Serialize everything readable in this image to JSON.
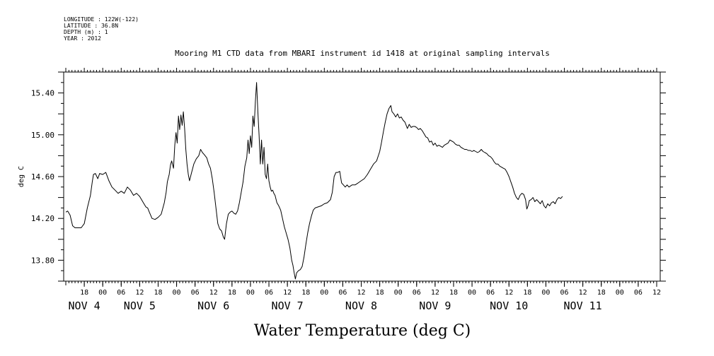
{
  "header": {
    "meta_lines": [
      "LONGITUDE : 122W(-122)",
      "LATITUDE : 36.8N",
      "DEPTH (m) : 1",
      "YEAR : 2012"
    ],
    "title": "Mooring M1 CTD data from MBARI instrument id 1418 at original sampling intervals"
  },
  "chart_data": {
    "type": "line",
    "title": "Mooring M1 CTD data from MBARI instrument id 1418 at original sampling intervals",
    "xlabel": "Water Temperature (deg C)",
    "ylabel": "deg C",
    "x_unit": "hours from Nov 3 12:00 2012",
    "xlim": [
      0,
      192
    ],
    "ylim": [
      13.6,
      15.6
    ],
    "yticks": [
      "13.80",
      "14.20",
      "14.60",
      "15.00",
      "15.40"
    ],
    "ytick_values": [
      13.8,
      14.2,
      14.6,
      15.0,
      15.4
    ],
    "xticks": [
      {
        "h": 6,
        "label": "18"
      },
      {
        "h": 12,
        "label": "00"
      },
      {
        "h": 18,
        "label": "06"
      },
      {
        "h": 24,
        "label": "12"
      },
      {
        "h": 30,
        "label": "18"
      },
      {
        "h": 36,
        "label": "00"
      },
      {
        "h": 42,
        "label": "06"
      },
      {
        "h": 48,
        "label": "12"
      },
      {
        "h": 54,
        "label": "18"
      },
      {
        "h": 60,
        "label": "00"
      },
      {
        "h": 66,
        "label": "06"
      },
      {
        "h": 72,
        "label": "12"
      },
      {
        "h": 78,
        "label": "18"
      },
      {
        "h": 84,
        "label": "00"
      },
      {
        "h": 90,
        "label": "06"
      },
      {
        "h": 96,
        "label": "12"
      },
      {
        "h": 102,
        "label": "18"
      },
      {
        "h": 108,
        "label": "00"
      },
      {
        "h": 114,
        "label": "06"
      },
      {
        "h": 120,
        "label": "12"
      },
      {
        "h": 126,
        "label": "18"
      },
      {
        "h": 132,
        "label": "00"
      },
      {
        "h": 138,
        "label": "06"
      },
      {
        "h": 144,
        "label": "12"
      },
      {
        "h": 150,
        "label": "18"
      },
      {
        "h": 156,
        "label": "00"
      },
      {
        "h": 162,
        "label": "06"
      },
      {
        "h": 168,
        "label": "12"
      },
      {
        "h": 174,
        "label": "18"
      },
      {
        "h": 180,
        "label": "00"
      },
      {
        "h": 186,
        "label": "06"
      },
      {
        "h": 192,
        "label": "12"
      }
    ],
    "day_labels": [
      {
        "h": 6,
        "label": "NOV  4"
      },
      {
        "h": 24,
        "label": "NOV  5"
      },
      {
        "h": 48,
        "label": "NOV  6"
      },
      {
        "h": 72,
        "label": "NOV  7"
      },
      {
        "h": 96,
        "label": "NOV  8"
      },
      {
        "h": 120,
        "label": "NOV  9"
      },
      {
        "h": 144,
        "label": "NOV 10"
      },
      {
        "h": 168,
        "label": "NOV 11"
      }
    ],
    "series": [
      {
        "points": [
          [
            0.0,
            14.26
          ],
          [
            0.6,
            14.27
          ],
          [
            1.4,
            14.23
          ],
          [
            2.2,
            14.13
          ],
          [
            3.0,
            14.11
          ],
          [
            4.0,
            14.11
          ],
          [
            5.0,
            14.11
          ],
          [
            6.0,
            14.15
          ],
          [
            7.0,
            14.3
          ],
          [
            8.0,
            14.42
          ],
          [
            8.6,
            14.55
          ],
          [
            9.0,
            14.62
          ],
          [
            9.6,
            14.63
          ],
          [
            10.4,
            14.58
          ],
          [
            11.0,
            14.63
          ],
          [
            12.0,
            14.62
          ],
          [
            13.0,
            14.64
          ],
          [
            14.0,
            14.56
          ],
          [
            15.0,
            14.5
          ],
          [
            16.0,
            14.47
          ],
          [
            17.0,
            14.44
          ],
          [
            18.0,
            14.46
          ],
          [
            19.0,
            14.44
          ],
          [
            20.0,
            14.5
          ],
          [
            21.0,
            14.47
          ],
          [
            22.0,
            14.42
          ],
          [
            23.0,
            14.44
          ],
          [
            24.0,
            14.41
          ],
          [
            25.0,
            14.36
          ],
          [
            26.0,
            14.31
          ],
          [
            26.6,
            14.3
          ],
          [
            27.0,
            14.27
          ],
          [
            28.0,
            14.2
          ],
          [
            29.0,
            14.19
          ],
          [
            30.0,
            14.21
          ],
          [
            31.0,
            14.24
          ],
          [
            32.0,
            14.35
          ],
          [
            32.6,
            14.45
          ],
          [
            33.0,
            14.55
          ],
          [
            33.6,
            14.62
          ],
          [
            34.0,
            14.71
          ],
          [
            34.4,
            14.75
          ],
          [
            35.0,
            14.68
          ],
          [
            35.4,
            14.9
          ],
          [
            35.8,
            15.02
          ],
          [
            36.2,
            14.92
          ],
          [
            36.6,
            15.18
          ],
          [
            37.0,
            15.05
          ],
          [
            37.4,
            15.19
          ],
          [
            37.8,
            15.09
          ],
          [
            38.2,
            15.22
          ],
          [
            38.6,
            15.06
          ],
          [
            39.0,
            14.86
          ],
          [
            39.4,
            14.72
          ],
          [
            39.8,
            14.62
          ],
          [
            40.2,
            14.56
          ],
          [
            40.8,
            14.63
          ],
          [
            41.6,
            14.72
          ],
          [
            42.4,
            14.77
          ],
          [
            43.2,
            14.8
          ],
          [
            43.8,
            14.86
          ],
          [
            44.4,
            14.83
          ],
          [
            45.0,
            14.81
          ],
          [
            45.8,
            14.78
          ],
          [
            46.4,
            14.72
          ],
          [
            47.0,
            14.68
          ],
          [
            47.6,
            14.58
          ],
          [
            48.2,
            14.45
          ],
          [
            48.8,
            14.3
          ],
          [
            49.4,
            14.15
          ],
          [
            50.0,
            14.1
          ],
          [
            50.6,
            14.08
          ],
          [
            51.2,
            14.02
          ],
          [
            51.6,
            14.0
          ],
          [
            52.2,
            14.15
          ],
          [
            52.8,
            14.24
          ],
          [
            53.4,
            14.26
          ],
          [
            54.0,
            14.27
          ],
          [
            54.6,
            14.25
          ],
          [
            55.2,
            14.24
          ],
          [
            55.8,
            14.27
          ],
          [
            56.4,
            14.35
          ],
          [
            57.0,
            14.45
          ],
          [
            57.6,
            14.55
          ],
          [
            58.2,
            14.7
          ],
          [
            58.8,
            14.78
          ],
          [
            59.2,
            14.95
          ],
          [
            59.6,
            14.82
          ],
          [
            60.0,
            14.99
          ],
          [
            60.4,
            14.88
          ],
          [
            60.8,
            15.18
          ],
          [
            61.2,
            15.08
          ],
          [
            61.6,
            15.32
          ],
          [
            62.0,
            15.5
          ],
          [
            62.4,
            15.22
          ],
          [
            62.8,
            15.0
          ],
          [
            63.2,
            14.72
          ],
          [
            63.6,
            14.95
          ],
          [
            64.0,
            14.72
          ],
          [
            64.4,
            14.88
          ],
          [
            64.8,
            14.62
          ],
          [
            65.2,
            14.58
          ],
          [
            65.6,
            14.72
          ],
          [
            66.0,
            14.56
          ],
          [
            66.4,
            14.5
          ],
          [
            66.8,
            14.46
          ],
          [
            67.2,
            14.47
          ],
          [
            67.6,
            14.44
          ],
          [
            68.0,
            14.42
          ],
          [
            68.6,
            14.35
          ],
          [
            69.2,
            14.32
          ],
          [
            69.8,
            14.28
          ],
          [
            70.4,
            14.2
          ],
          [
            71.0,
            14.12
          ],
          [
            71.6,
            14.06
          ],
          [
            72.2,
            14.0
          ],
          [
            72.8,
            13.92
          ],
          [
            73.4,
            13.8
          ],
          [
            73.8,
            13.75
          ],
          [
            74.2,
            13.68
          ],
          [
            74.6,
            13.62
          ],
          [
            75.0,
            13.68
          ],
          [
            75.6,
            13.7
          ],
          [
            76.2,
            13.71
          ],
          [
            76.8,
            13.74
          ],
          [
            77.4,
            13.83
          ],
          [
            78.0,
            13.95
          ],
          [
            78.6,
            14.06
          ],
          [
            79.2,
            14.15
          ],
          [
            79.8,
            14.22
          ],
          [
            80.4,
            14.28
          ],
          [
            81.0,
            14.3
          ],
          [
            82.0,
            14.31
          ],
          [
            83.0,
            14.32
          ],
          [
            84.0,
            14.34
          ],
          [
            85.0,
            14.35
          ],
          [
            86.0,
            14.38
          ],
          [
            86.6,
            14.45
          ],
          [
            87.2,
            14.6
          ],
          [
            87.8,
            14.64
          ],
          [
            88.4,
            14.64
          ],
          [
            89.0,
            14.65
          ],
          [
            89.6,
            14.54
          ],
          [
            90.2,
            14.52
          ],
          [
            90.8,
            14.5
          ],
          [
            91.4,
            14.52
          ],
          [
            92.0,
            14.5
          ],
          [
            93.0,
            14.52
          ],
          [
            94.0,
            14.52
          ],
          [
            95.0,
            14.54
          ],
          [
            96.0,
            14.56
          ],
          [
            97.0,
            14.58
          ],
          [
            98.0,
            14.62
          ],
          [
            99.0,
            14.67
          ],
          [
            100.0,
            14.72
          ],
          [
            101.0,
            14.75
          ],
          [
            102.0,
            14.84
          ],
          [
            102.6,
            14.93
          ],
          [
            103.2,
            15.03
          ],
          [
            103.8,
            15.12
          ],
          [
            104.4,
            15.2
          ],
          [
            105.0,
            15.25
          ],
          [
            105.6,
            15.28
          ],
          [
            106.0,
            15.22
          ],
          [
            106.6,
            15.2
          ],
          [
            107.2,
            15.17
          ],
          [
            107.8,
            15.2
          ],
          [
            108.4,
            15.16
          ],
          [
            109.0,
            15.17
          ],
          [
            109.6,
            15.14
          ],
          [
            110.2,
            15.12
          ],
          [
            111.0,
            15.06
          ],
          [
            111.6,
            15.1
          ],
          [
            112.2,
            15.07
          ],
          [
            112.8,
            15.08
          ],
          [
            113.4,
            15.08
          ],
          [
            114.0,
            15.07
          ],
          [
            114.6,
            15.05
          ],
          [
            115.2,
            15.06
          ],
          [
            115.8,
            15.04
          ],
          [
            116.4,
            15.01
          ],
          [
            117.0,
            14.98
          ],
          [
            117.6,
            14.97
          ],
          [
            118.2,
            14.93
          ],
          [
            118.8,
            14.94
          ],
          [
            119.4,
            14.9
          ],
          [
            120.0,
            14.92
          ],
          [
            120.6,
            14.89
          ],
          [
            121.2,
            14.9
          ],
          [
            121.8,
            14.89
          ],
          [
            122.4,
            14.88
          ],
          [
            123.0,
            14.9
          ],
          [
            123.6,
            14.91
          ],
          [
            124.2,
            14.92
          ],
          [
            124.8,
            14.95
          ],
          [
            125.4,
            14.94
          ],
          [
            126.0,
            14.93
          ],
          [
            126.6,
            14.91
          ],
          [
            127.2,
            14.9
          ],
          [
            127.8,
            14.9
          ],
          [
            128.4,
            14.88
          ],
          [
            129.0,
            14.87
          ],
          [
            129.6,
            14.86
          ],
          [
            130.2,
            14.86
          ],
          [
            130.8,
            14.85
          ],
          [
            131.4,
            14.85
          ],
          [
            132.0,
            14.84
          ],
          [
            132.6,
            14.85
          ],
          [
            133.2,
            14.84
          ],
          [
            133.8,
            14.83
          ],
          [
            134.4,
            14.84
          ],
          [
            135.0,
            14.86
          ],
          [
            135.6,
            14.84
          ],
          [
            136.2,
            14.83
          ],
          [
            136.8,
            14.82
          ],
          [
            137.4,
            14.8
          ],
          [
            138.0,
            14.79
          ],
          [
            138.6,
            14.77
          ],
          [
            139.2,
            14.74
          ],
          [
            139.8,
            14.72
          ],
          [
            140.4,
            14.72
          ],
          [
            141.0,
            14.7
          ],
          [
            141.6,
            14.69
          ],
          [
            142.2,
            14.68
          ],
          [
            142.8,
            14.67
          ],
          [
            143.4,
            14.64
          ],
          [
            144.0,
            14.6
          ],
          [
            144.6,
            14.55
          ],
          [
            145.2,
            14.5
          ],
          [
            145.8,
            14.44
          ],
          [
            146.4,
            14.4
          ],
          [
            147.0,
            14.38
          ],
          [
            147.6,
            14.42
          ],
          [
            148.2,
            14.44
          ],
          [
            148.8,
            14.43
          ],
          [
            149.4,
            14.38
          ],
          [
            149.8,
            14.29
          ],
          [
            150.2,
            14.32
          ],
          [
            150.6,
            14.37
          ],
          [
            151.2,
            14.38
          ],
          [
            151.8,
            14.4
          ],
          [
            152.4,
            14.36
          ],
          [
            153.0,
            14.38
          ],
          [
            153.6,
            14.36
          ],
          [
            154.2,
            14.34
          ],
          [
            154.8,
            14.37
          ],
          [
            155.4,
            14.32
          ],
          [
            156.0,
            14.3
          ],
          [
            156.6,
            14.34
          ],
          [
            157.2,
            14.32
          ],
          [
            157.8,
            14.35
          ],
          [
            158.4,
            14.36
          ],
          [
            159.0,
            14.34
          ],
          [
            159.6,
            14.38
          ],
          [
            160.2,
            14.4
          ],
          [
            160.8,
            14.39
          ],
          [
            161.4,
            14.41
          ]
        ]
      }
    ]
  }
}
